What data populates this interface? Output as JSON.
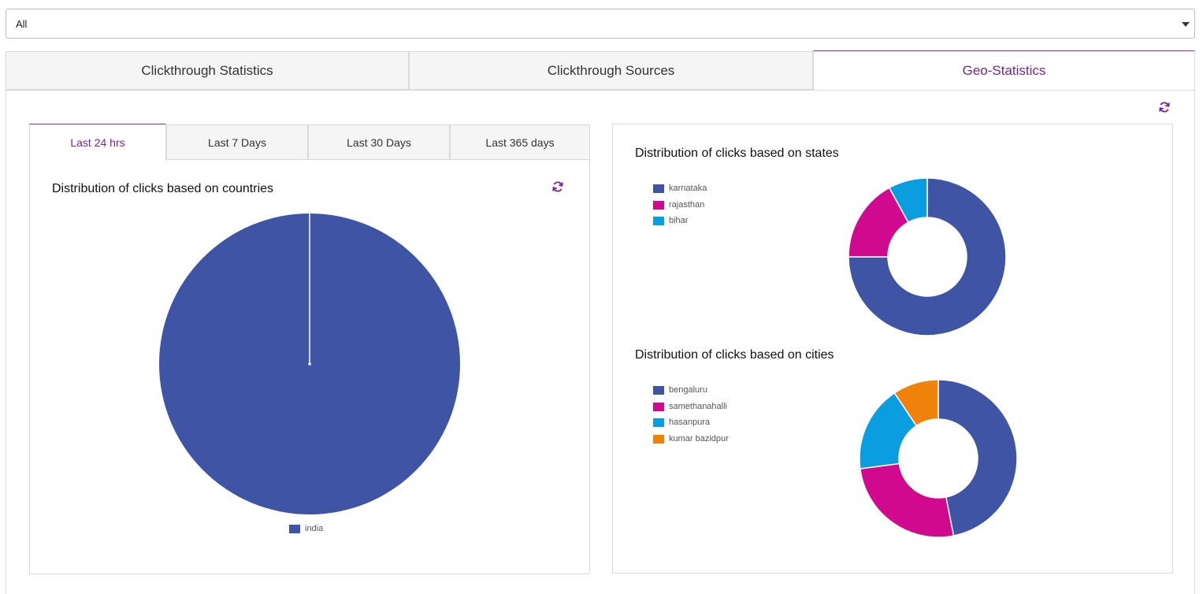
{
  "filter": {
    "selected": "All"
  },
  "main_tabs": [
    {
      "label": "Clickthrough Statistics",
      "active": false
    },
    {
      "label": "Clickthrough Sources",
      "active": false
    },
    {
      "label": "Geo-Statistics",
      "active": true
    }
  ],
  "time_tabs": [
    {
      "label": "Last 24 hrs",
      "active": true
    },
    {
      "label": "Last 7 Days",
      "active": false
    },
    {
      "label": "Last 30 Days",
      "active": false
    },
    {
      "label": "Last 365 days",
      "active": false
    }
  ],
  "icons": {
    "refresh": "refresh-icon"
  },
  "colors": {
    "accent": "#7b1fa2",
    "blue": "#3f54a4",
    "magenta": "#d0098f",
    "cyan": "#0a9ddf",
    "orange": "#f0820c"
  },
  "chart_data": [
    {
      "type": "pie",
      "title": "Distribution of clicks based on countries",
      "categories": [
        "india"
      ],
      "values": [
        100
      ],
      "colors": [
        "#3f54a4"
      ],
      "legend": "bottom"
    },
    {
      "type": "pie",
      "donut": true,
      "title": "Distribution of clicks based on states",
      "categories": [
        "karnataka",
        "rajasthan",
        "bihar"
      ],
      "values": [
        75,
        17,
        8
      ],
      "colors": [
        "#3f54a4",
        "#d0098f",
        "#0a9ddf"
      ],
      "legend": "left"
    },
    {
      "type": "pie",
      "donut": true,
      "title": "Distribution of clicks based on cities",
      "categories": [
        "bengaluru",
        "samethanahalli",
        "hasanpura",
        "kumar bazidpur"
      ],
      "values": [
        45,
        25,
        17,
        9
      ],
      "colors": [
        "#3f54a4",
        "#d0098f",
        "#0a9ddf",
        "#f0820c"
      ],
      "legend": "left"
    }
  ]
}
